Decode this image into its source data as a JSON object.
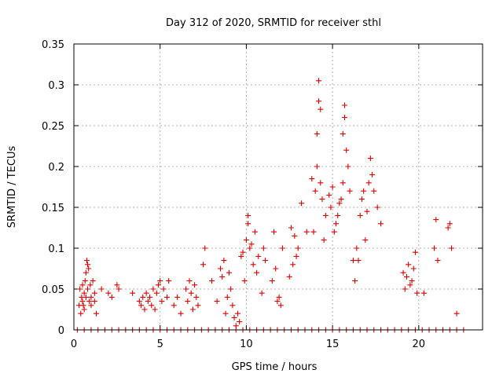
{
  "chart_data": {
    "type": "scatter",
    "title": "Day 312 of 2020, SRMTID for receiver sthl",
    "xlabel": "GPS time / hours",
    "ylabel": "SRMTID / TECUs",
    "xlim": [
      0,
      23.7
    ],
    "ylim": [
      0,
      0.35
    ],
    "x_ticks": [
      0,
      5,
      10,
      15,
      20
    ],
    "y_ticks": [
      0,
      0.05,
      0.1,
      0.15,
      0.2,
      0.25,
      0.3,
      0.35
    ],
    "x_tick_labels": [
      "0",
      "5",
      "10",
      "15",
      "20"
    ],
    "y_tick_labels": [
      "0",
      "0.05",
      "0.1",
      "0.15",
      "0.2",
      "0.25",
      "0.3",
      "0.35"
    ],
    "grid": true,
    "marker": "+",
    "series": [
      {
        "name": "SRMTID",
        "color": "#e00000",
        "x": [
          0.3,
          0.35,
          0.4,
          0.45,
          0.5,
          0.5,
          0.55,
          0.6,
          0.6,
          0.65,
          0.7,
          0.7,
          0.75,
          0.8,
          0.8,
          0.85,
          0.9,
          0.95,
          1.0,
          1.0,
          1.1,
          1.2,
          1.2,
          1.3,
          1.6,
          2.0,
          2.2,
          2.5,
          2.6,
          3.4,
          3.8,
          3.9,
          4.0,
          4.1,
          4.2,
          4.3,
          4.4,
          4.5,
          4.6,
          4.7,
          4.8,
          4.9,
          5.0,
          5.1,
          5.2,
          5.4,
          5.5,
          5.8,
          6.0,
          6.2,
          6.5,
          6.6,
          6.7,
          6.8,
          6.9,
          7.0,
          7.1,
          7.2,
          7.5,
          7.6,
          8.0,
          8.3,
          8.5,
          8.6,
          8.7,
          8.8,
          8.9,
          9.0,
          9.1,
          9.2,
          9.3,
          9.4,
          9.5,
          9.6,
          9.7,
          9.8,
          9.9,
          10.0,
          10.1,
          10.1,
          10.2,
          10.3,
          10.4,
          10.5,
          10.6,
          10.7,
          10.9,
          11.0,
          11.1,
          11.5,
          11.6,
          11.7,
          11.8,
          11.9,
          12.0,
          12.1,
          12.5,
          12.6,
          12.7,
          12.8,
          12.9,
          13.0,
          13.2,
          13.5,
          13.8,
          13.9,
          14.0,
          14.1,
          14.1,
          14.2,
          14.2,
          14.3,
          14.3,
          14.4,
          14.5,
          14.6,
          14.8,
          14.9,
          15.0,
          15.1,
          15.2,
          15.3,
          15.4,
          15.5,
          15.6,
          15.6,
          15.7,
          15.7,
          15.8,
          15.9,
          16.0,
          16.2,
          16.3,
          16.4,
          16.5,
          16.6,
          16.7,
          16.8,
          16.9,
          17.0,
          17.1,
          17.2,
          17.3,
          17.4,
          17.6,
          17.8,
          19.1,
          19.2,
          19.3,
          19.4,
          19.5,
          19.6,
          19.7,
          19.8,
          19.9,
          20.3,
          20.9,
          21.0,
          21.1,
          21.7,
          21.8,
          21.9,
          22.2,
          0.2,
          0.6,
          1.0,
          1.4,
          1.8,
          2.2,
          2.6,
          3.0,
          3.4,
          3.8,
          4.2,
          4.6,
          5.0,
          5.4,
          5.8,
          6.2,
          6.6,
          7.0,
          7.4,
          7.8,
          8.2,
          8.6,
          9.0,
          9.4,
          9.8,
          10.2,
          10.6,
          11.0,
          11.4,
          11.8,
          12.2,
          12.6,
          13.0,
          13.4,
          13.8,
          14.2,
          14.6,
          15.0,
          15.4,
          15.8,
          16.2,
          16.6,
          17.0,
          17.4,
          17.8,
          18.2,
          18.6,
          19.0,
          19.4,
          19.8,
          20.2,
          20.6,
          21.0,
          21.4,
          21.8,
          22.2,
          22.6
        ],
        "y": [
          0.03,
          0.05,
          0.02,
          0.04,
          0.035,
          0.055,
          0.03,
          0.045,
          0.025,
          0.06,
          0.04,
          0.07,
          0.085,
          0.08,
          0.05,
          0.075,
          0.035,
          0.055,
          0.04,
          0.03,
          0.06,
          0.035,
          0.045,
          0.02,
          0.05,
          0.045,
          0.04,
          0.055,
          0.05,
          0.045,
          0.035,
          0.03,
          0.04,
          0.025,
          0.045,
          0.035,
          0.04,
          0.03,
          0.05,
          0.025,
          0.045,
          0.055,
          0.06,
          0.035,
          0.05,
          0.04,
          0.06,
          0.03,
          0.04,
          0.02,
          0.05,
          0.035,
          0.06,
          0.045,
          0.025,
          0.055,
          0.04,
          0.03,
          0.08,
          0.1,
          0.06,
          0.035,
          0.075,
          0.065,
          0.085,
          0.02,
          0.04,
          0.07,
          0.05,
          0.03,
          0.015,
          0.005,
          0.02,
          0.01,
          0.09,
          0.095,
          0.06,
          0.11,
          0.13,
          0.14,
          0.1,
          0.105,
          0.08,
          0.12,
          0.07,
          0.09,
          0.045,
          0.1,
          0.085,
          0.06,
          0.12,
          0.075,
          0.035,
          0.04,
          0.03,
          0.1,
          0.065,
          0.125,
          0.08,
          0.115,
          0.09,
          0.1,
          0.155,
          0.12,
          0.185,
          0.12,
          0.17,
          0.2,
          0.24,
          0.28,
          0.305,
          0.27,
          0.18,
          0.16,
          0.11,
          0.14,
          0.165,
          0.15,
          0.175,
          0.12,
          0.13,
          0.14,
          0.155,
          0.16,
          0.18,
          0.24,
          0.26,
          0.275,
          0.22,
          0.2,
          0.17,
          0.085,
          0.06,
          0.1,
          0.085,
          0.14,
          0.16,
          0.17,
          0.11,
          0.145,
          0.18,
          0.21,
          0.19,
          0.17,
          0.15,
          0.13,
          0.07,
          0.05,
          0.065,
          0.08,
          0.055,
          0.06,
          0.075,
          0.095,
          0.045,
          0.045,
          0.1,
          0.135,
          0.085,
          0.125,
          0.13,
          0.1,
          0.02,
          0,
          0,
          0,
          0,
          0,
          0,
          0,
          0,
          0,
          0,
          0,
          0,
          0,
          0,
          0,
          0,
          0,
          0,
          0,
          0,
          0,
          0,
          0,
          0,
          0,
          0,
          0,
          0,
          0,
          0,
          0,
          0,
          0,
          0,
          0,
          0,
          0,
          0,
          0,
          0,
          0,
          0,
          0,
          0,
          0,
          0,
          0,
          0,
          0,
          0,
          0,
          0,
          0,
          0,
          0,
          0,
          0
        ]
      }
    ]
  }
}
